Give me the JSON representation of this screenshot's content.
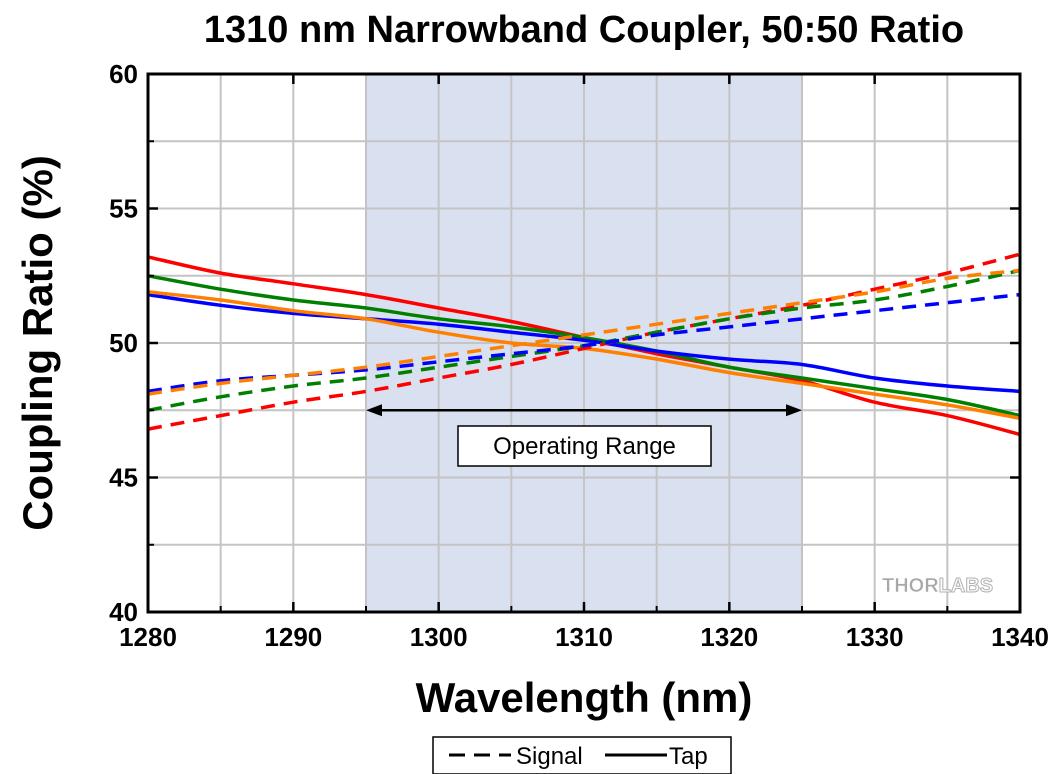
{
  "chart_data": {
    "type": "line",
    "title": "1310 nm Narrowband Coupler, 50:50 Ratio",
    "xlabel": "Wavelength (nm)",
    "ylabel": "Coupling Ratio (%)",
    "xlim": [
      1280,
      1340
    ],
    "ylim": [
      40,
      60
    ],
    "xticks": [
      1280,
      1290,
      1300,
      1310,
      1320,
      1330,
      1340
    ],
    "yticks": [
      40,
      45,
      50,
      55,
      60
    ],
    "grid": true,
    "shaded_region": {
      "x_start": 1295,
      "x_end": 1325,
      "color": "#d9e0f0"
    },
    "annotation": {
      "text": "Operating Range",
      "x_start": 1295,
      "x_end": 1325,
      "y": 47.5
    },
    "legend": {
      "position": "bottom-center",
      "entries": [
        {
          "label": "Signal",
          "style": "dashed"
        },
        {
          "label": "Tap",
          "style": "solid"
        }
      ]
    },
    "watermark": "THORLABS",
    "x": [
      1280,
      1285,
      1290,
      1295,
      1300,
      1305,
      1310,
      1315,
      1320,
      1325,
      1330,
      1335,
      1340
    ],
    "series": [
      {
        "color": "#ff0000",
        "style": "solid",
        "values": [
          53.2,
          52.6,
          52.2,
          51.8,
          51.3,
          50.8,
          50.2,
          49.6,
          49.1,
          48.6,
          47.8,
          47.3,
          46.6
        ]
      },
      {
        "color": "#008000",
        "style": "solid",
        "values": [
          52.5,
          52.0,
          51.6,
          51.3,
          50.9,
          50.6,
          50.2,
          49.7,
          49.1,
          48.7,
          48.3,
          47.9,
          47.3
        ]
      },
      {
        "color": "#0000ff",
        "style": "solid",
        "values": [
          51.8,
          51.4,
          51.1,
          50.9,
          50.7,
          50.4,
          50.1,
          49.7,
          49.4,
          49.2,
          48.7,
          48.4,
          48.2
        ]
      },
      {
        "color": "#ff8000",
        "style": "solid",
        "values": [
          51.9,
          51.6,
          51.2,
          50.9,
          50.4,
          50.0,
          49.8,
          49.4,
          48.9,
          48.5,
          48.1,
          47.7,
          47.2
        ]
      },
      {
        "color": "#ff0000",
        "style": "dashed",
        "values": [
          46.8,
          47.3,
          47.8,
          48.2,
          48.7,
          49.2,
          49.8,
          50.4,
          50.9,
          51.4,
          52.0,
          52.6,
          53.3
        ]
      },
      {
        "color": "#008000",
        "style": "dashed",
        "values": [
          47.5,
          48.0,
          48.4,
          48.7,
          49.1,
          49.5,
          49.9,
          50.4,
          50.9,
          51.3,
          51.6,
          52.1,
          52.7
        ]
      },
      {
        "color": "#0000ff",
        "style": "dashed",
        "values": [
          48.2,
          48.6,
          48.8,
          49.0,
          49.3,
          49.6,
          49.9,
          50.3,
          50.6,
          50.9,
          51.2,
          51.5,
          51.8
        ]
      },
      {
        "color": "#ff8000",
        "style": "dashed",
        "values": [
          48.1,
          48.5,
          48.8,
          49.1,
          49.5,
          49.9,
          50.3,
          50.7,
          51.1,
          51.5,
          51.9,
          52.4,
          52.7
        ]
      }
    ]
  }
}
